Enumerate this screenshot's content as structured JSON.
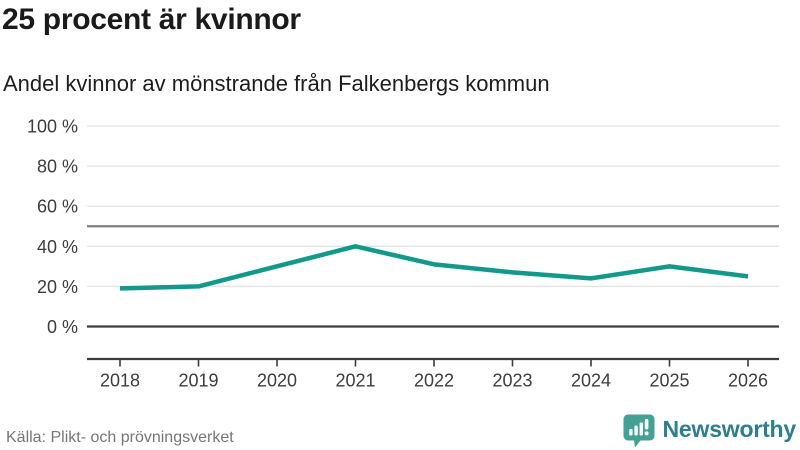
{
  "header": {
    "title": "25 procent är kvinnor",
    "subtitle": "Andel kvinnor av mönstrande från Falkenbergs kommun"
  },
  "chart_data": {
    "type": "line",
    "x": [
      "2018",
      "2019",
      "2020",
      "2021",
      "2022",
      "2023",
      "2024",
      "2025",
      "2026"
    ],
    "series": [
      {
        "name": "Andel kvinnor av mönstrande",
        "values": [
          19,
          20,
          30,
          40,
          31,
          27,
          24,
          30,
          25
        ]
      }
    ],
    "title": "25 procent är kvinnor",
    "subtitle": "Andel kvinnor av mönstrande från Falkenbergs kommun",
    "xlabel": "",
    "ylabel": "",
    "ylim": [
      0,
      100
    ],
    "yticks": [
      0,
      20,
      40,
      60,
      80,
      100
    ],
    "ytick_suffix": " %",
    "reference_line": 50,
    "grid": true,
    "legend": "none"
  },
  "footer": {
    "source": "Källa: Plikt- och prövningsverket",
    "brand": "Newsworthy"
  },
  "colors": {
    "background": "#ffffff",
    "text_dark": "#1a1a1a",
    "tick_label": "#3d3d3d",
    "grid_light": "#e3e3e3",
    "grid_mid": "#7f7f7f",
    "axis_dark": "#3c3c3c",
    "line": "#12998b",
    "source_text": "#767676",
    "brand_icon": "#43a195",
    "brand_text": "#2e7e8f"
  }
}
